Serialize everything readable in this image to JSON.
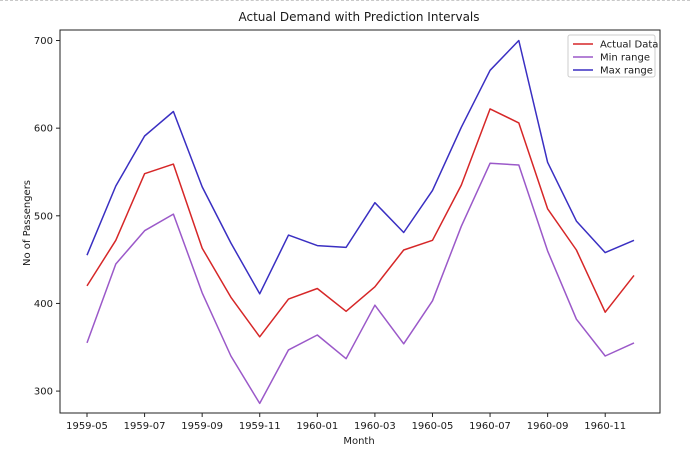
{
  "chart_data": {
    "type": "line",
    "title": "Actual Demand with Prediction Intervals",
    "xlabel": "Month",
    "ylabel": "No of Passengers",
    "x": [
      "1959-05",
      "1959-06",
      "1959-07",
      "1959-08",
      "1959-09",
      "1959-10",
      "1959-11",
      "1959-12",
      "1960-01",
      "1960-02",
      "1960-03",
      "1960-04",
      "1960-05",
      "1960-06",
      "1960-07",
      "1960-08",
      "1960-09",
      "1960-10",
      "1960-11",
      "1960-12"
    ],
    "x_tick_labels": [
      "1959-05",
      "1959-07",
      "1959-09",
      "1959-11",
      "1960-01",
      "1960-03",
      "1960-05",
      "1960-07",
      "1960-09",
      "1960-11"
    ],
    "yticks": [
      300,
      400,
      500,
      600,
      700
    ],
    "ylim": [
      275,
      712
    ],
    "grid": false,
    "legend_position": "top-right",
    "series": [
      {
        "name": "Actual Data",
        "color": "#d62728",
        "values": [
          420,
          472,
          548,
          559,
          463,
          407,
          362,
          405,
          417,
          391,
          419,
          461,
          472,
          535,
          622,
          606,
          508,
          461,
          390,
          432
        ]
      },
      {
        "name": "Min range",
        "color": "#9b59c9",
        "values": [
          355,
          445,
          483,
          502,
          412,
          340,
          286,
          347,
          364,
          337,
          398,
          354,
          403,
          488,
          560,
          558,
          460,
          382,
          340,
          355
        ]
      },
      {
        "name": "Max range",
        "color": "#3a2fc2",
        "values": [
          455,
          534,
          591,
          619,
          533,
          469,
          411,
          478,
          466,
          464,
          515,
          481,
          529,
          601,
          666,
          700,
          561,
          494,
          458,
          472
        ]
      }
    ]
  }
}
